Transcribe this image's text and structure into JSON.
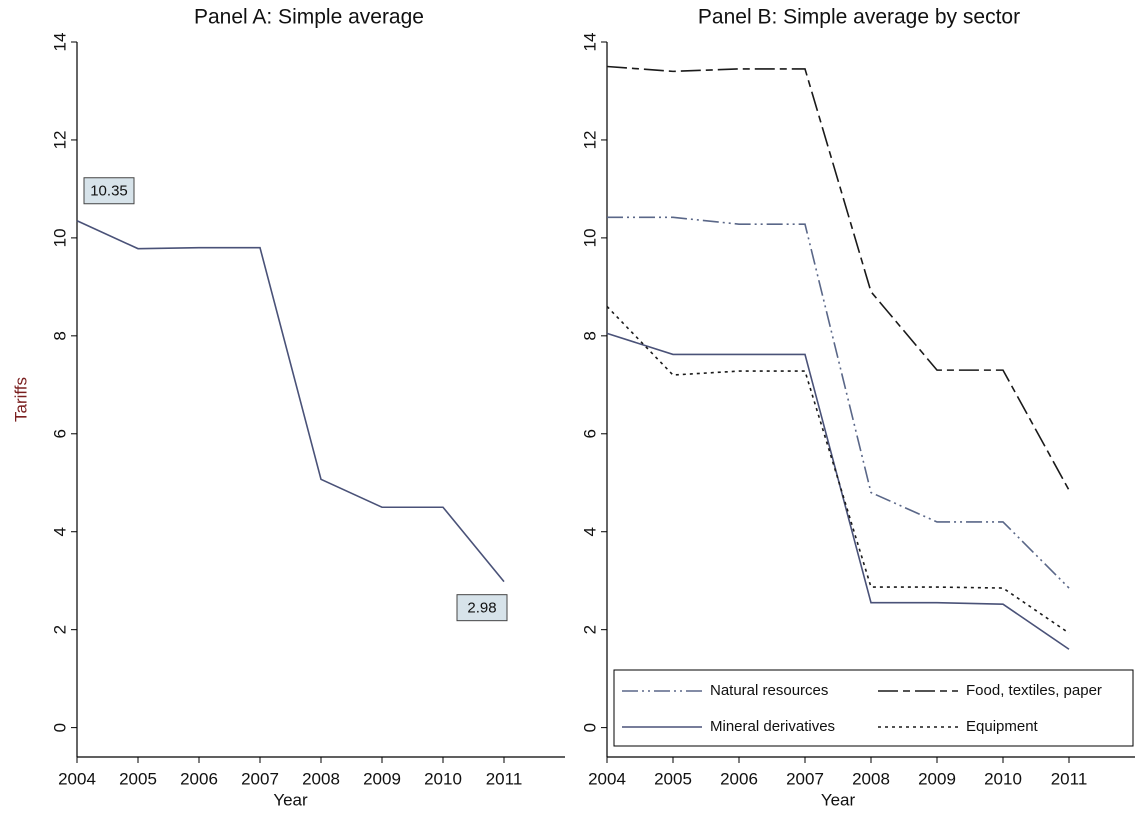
{
  "chart_data": [
    {
      "type": "line",
      "title": "Panel A: Simple average",
      "ylabel": "Tariffs",
      "xlabel": "Year",
      "x": [
        2004,
        2005,
        2006,
        2007,
        2008,
        2009,
        2010,
        2011
      ],
      "values": [
        10.35,
        9.78,
        9.8,
        9.8,
        5.07,
        4.5,
        4.5,
        2.98
      ],
      "value_labels": [
        "10.35",
        null,
        null,
        null,
        null,
        null,
        null,
        "2.98"
      ],
      "color": "#4a5278",
      "dash": "solid",
      "xlim": [
        2004,
        2012
      ],
      "xticks": [
        2004,
        2005,
        2006,
        2007,
        2008,
        2009,
        2010,
        2011
      ],
      "ylim": [
        -0.6,
        14
      ],
      "yticks": [
        0,
        2,
        4,
        6,
        8,
        10,
        12,
        14
      ],
      "grid": false
    },
    {
      "type": "line",
      "title": "Panel B: Simple average by sector",
      "xlabel": "Year",
      "x": [
        2004,
        2005,
        2006,
        2007,
        2008,
        2009,
        2010,
        2011
      ],
      "series": [
        {
          "name": "Natural resources",
          "color": "#5a6788",
          "dash": "dash-dot-dot",
          "values": [
            10.42,
            10.42,
            10.28,
            10.28,
            4.8,
            4.2,
            4.2,
            2.85
          ]
        },
        {
          "name": "Food, textiles, paper",
          "color": "#1a1a1a",
          "dash": "long-dash-short-dash",
          "values": [
            13.5,
            13.4,
            13.45,
            13.45,
            8.9,
            7.3,
            7.3,
            4.85
          ]
        },
        {
          "name": "Mineral derivatives",
          "color": "#4a5278",
          "dash": "solid",
          "values": [
            8.05,
            7.62,
            7.62,
            7.62,
            2.55,
            2.55,
            2.52,
            1.6
          ]
        },
        {
          "name": "Equipment",
          "color": "#1a1a1a",
          "dash": "dotted",
          "values": [
            8.6,
            7.2,
            7.28,
            7.28,
            2.87,
            2.87,
            2.85,
            1.93
          ]
        }
      ],
      "legend": "bottom",
      "xlim": [
        2004,
        2012
      ],
      "xticks": [
        2004,
        2005,
        2006,
        2007,
        2008,
        2009,
        2010,
        2011
      ],
      "ylim": [
        -0.6,
        14
      ],
      "yticks": [
        0,
        2,
        4,
        6,
        8,
        10,
        12,
        14
      ],
      "grid": false
    }
  ]
}
